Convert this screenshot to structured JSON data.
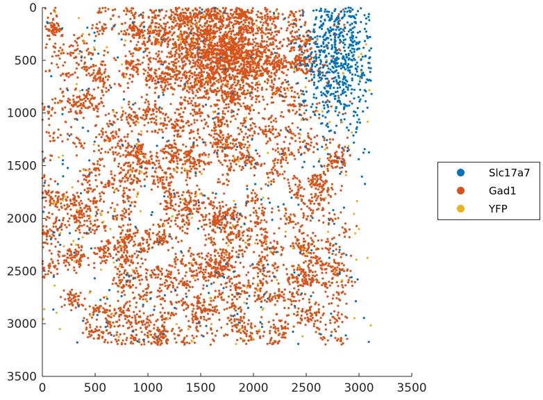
{
  "chart_data": {
    "type": "scatter",
    "title": "",
    "xlabel": "",
    "ylabel": "",
    "xlim": [
      0,
      3500
    ],
    "ylim": [
      0,
      3500
    ],
    "y_reversed": true,
    "grid": false,
    "legend_position": "right",
    "x_ticks": [
      "0",
      "500",
      "1000",
      "1500",
      "2000",
      "2500",
      "3000",
      "3500"
    ],
    "y_ticks": [
      "0",
      "500",
      "1000",
      "1500",
      "2000",
      "2500",
      "3000",
      "3500"
    ],
    "tissue_extent": {
      "x": [
        0,
        3120
      ],
      "y": [
        0,
        3200
      ]
    },
    "series": [
      {
        "name": "Slc17a7",
        "color": "#0072BD",
        "points_approx": 900,
        "density_note": "dense cluster in upper-right, sparse elsewhere",
        "cluster_center": [
          2800,
          500
        ],
        "cluster_spread": [
          180,
          380
        ]
      },
      {
        "name": "Gad1",
        "color": "#D95319",
        "points_approx": 7800,
        "density_note": "distributed across whole section, densest near [1700, 450]",
        "cluster_center": [
          1700,
          450
        ],
        "cluster_spread": [
          300,
          250
        ]
      },
      {
        "name": "YFP",
        "color": "#EDB120",
        "points_approx": 200,
        "density_note": "sparse scatter across section"
      }
    ]
  },
  "legend": {
    "items": [
      {
        "label": "Slc17a7",
        "color": "#0072BD"
      },
      {
        "label": "Gad1",
        "color": "#D95319"
      },
      {
        "label": "YFP",
        "color": "#EDB120"
      }
    ]
  }
}
